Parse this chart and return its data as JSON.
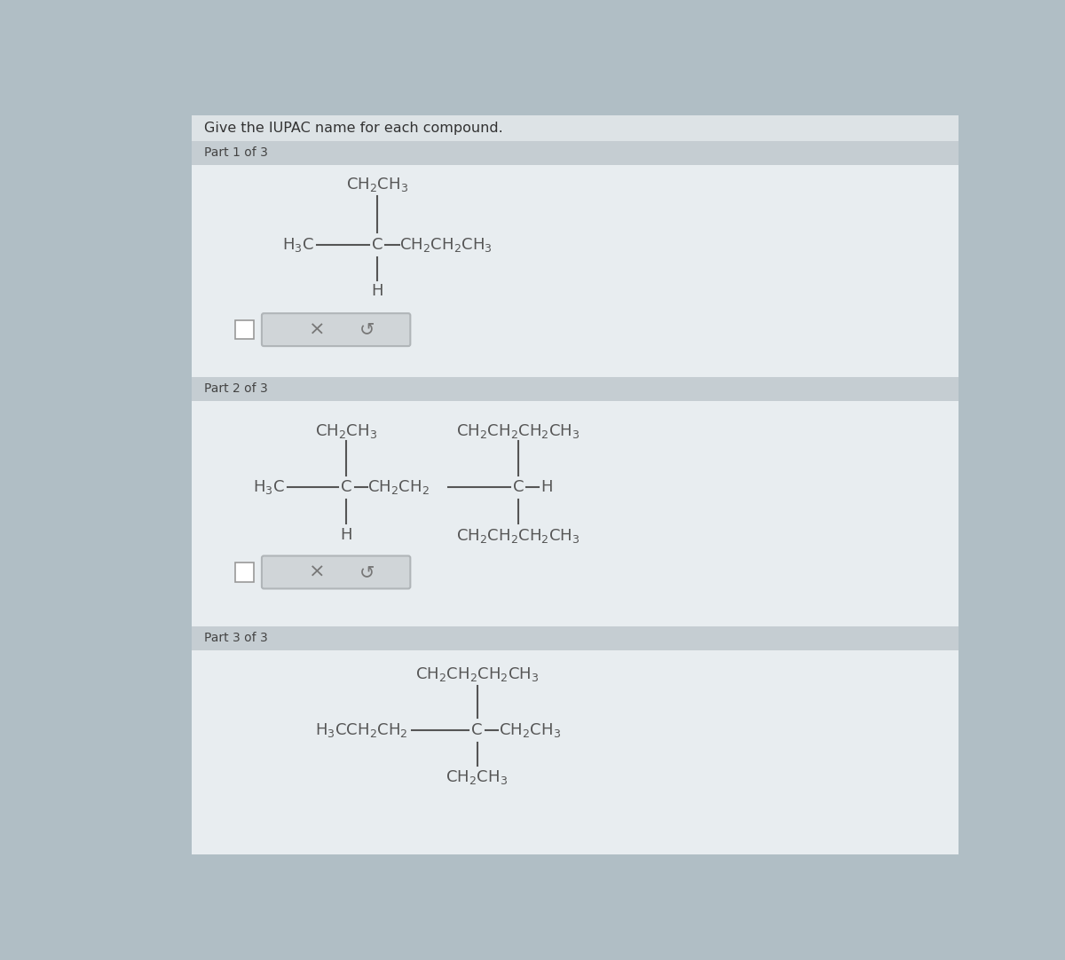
{
  "bg_left_strip": "#b0bec5",
  "bg_outer": "#cfd8dc",
  "bg_section_header": "#b0bec5",
  "bg_content": "#eceff1",
  "bg_white": "#ffffff",
  "bg_input_box": "#d0d5d8",
  "text_color": "#555555",
  "text_dark": "#444444",
  "line_color": "#555555",
  "title_text": "Give the IUPAC name for each compound.",
  "part1_header": "Part 1 of 3",
  "part2_header": "Part 2 of 3",
  "part3_header": "Part 3 of 3",
  "font_size_title": 11.5,
  "font_size_header": 10,
  "font_size_formula": 13
}
